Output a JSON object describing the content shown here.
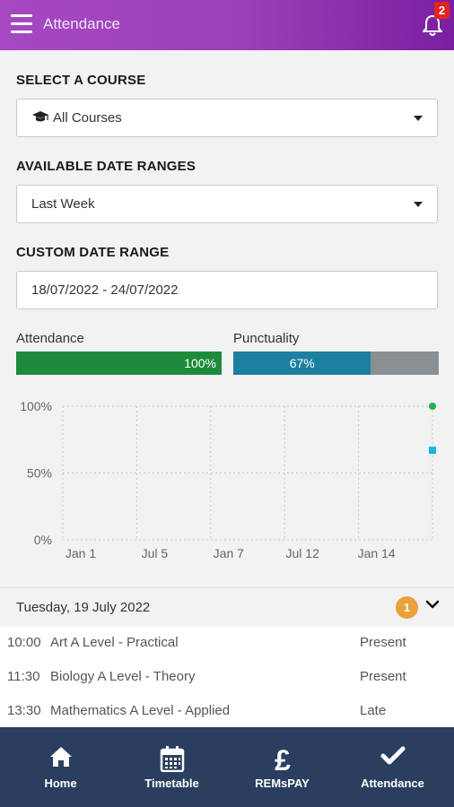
{
  "header": {
    "title": "Attendance",
    "notification_count": "2"
  },
  "filters": {
    "course_label": "SELECT A COURSE",
    "course_value": "All Courses",
    "range_label": "AVAILABLE DATE RANGES",
    "range_value": "Last Week",
    "custom_label": "CUSTOM DATE RANGE",
    "custom_value": "18/07/2022 - 24/07/2022"
  },
  "summary": {
    "attendance_label": "Attendance",
    "attendance_value": "100%",
    "attendance_fraction": 1.0,
    "punctuality_label": "Punctuality",
    "punctuality_value": "67%",
    "punctuality_fraction": 0.67,
    "attendance_color": "#1e8b3c",
    "punctuality_color": "#1d7fa1",
    "bar_track_color": "#8a8f94"
  },
  "chart_data": {
    "type": "scatter",
    "x_ticks": [
      "Jan 1",
      "Jul 5",
      "Jan 7",
      "Jul 12",
      "Jan 14"
    ],
    "y_ticks": [
      "100%",
      "50%",
      "0%"
    ],
    "ylim": [
      0,
      100
    ],
    "grid": true,
    "series": [
      {
        "values": [
          100
        ],
        "color": "#22b14c",
        "marker": "circle"
      },
      {
        "values": [
          67
        ],
        "color": "#1bb4e6",
        "marker": "square"
      }
    ]
  },
  "day": {
    "date": "Tuesday, 19 July 2022",
    "count": "1",
    "sessions": [
      {
        "time": "10:00",
        "name": "Art A Level - Practical",
        "status": "Present"
      },
      {
        "time": "11:30",
        "name": "Biology A Level - Theory",
        "status": "Present"
      },
      {
        "time": "13:30",
        "name": "Mathematics A Level - Applied",
        "status": "Late"
      }
    ]
  },
  "nav": {
    "items": [
      {
        "label": "Home",
        "icon": "home-icon"
      },
      {
        "label": "Timetable",
        "icon": "calendar-icon"
      },
      {
        "label": "REMsPAY",
        "icon": "pound-icon"
      },
      {
        "label": "Attendance",
        "icon": "check-icon"
      }
    ]
  }
}
